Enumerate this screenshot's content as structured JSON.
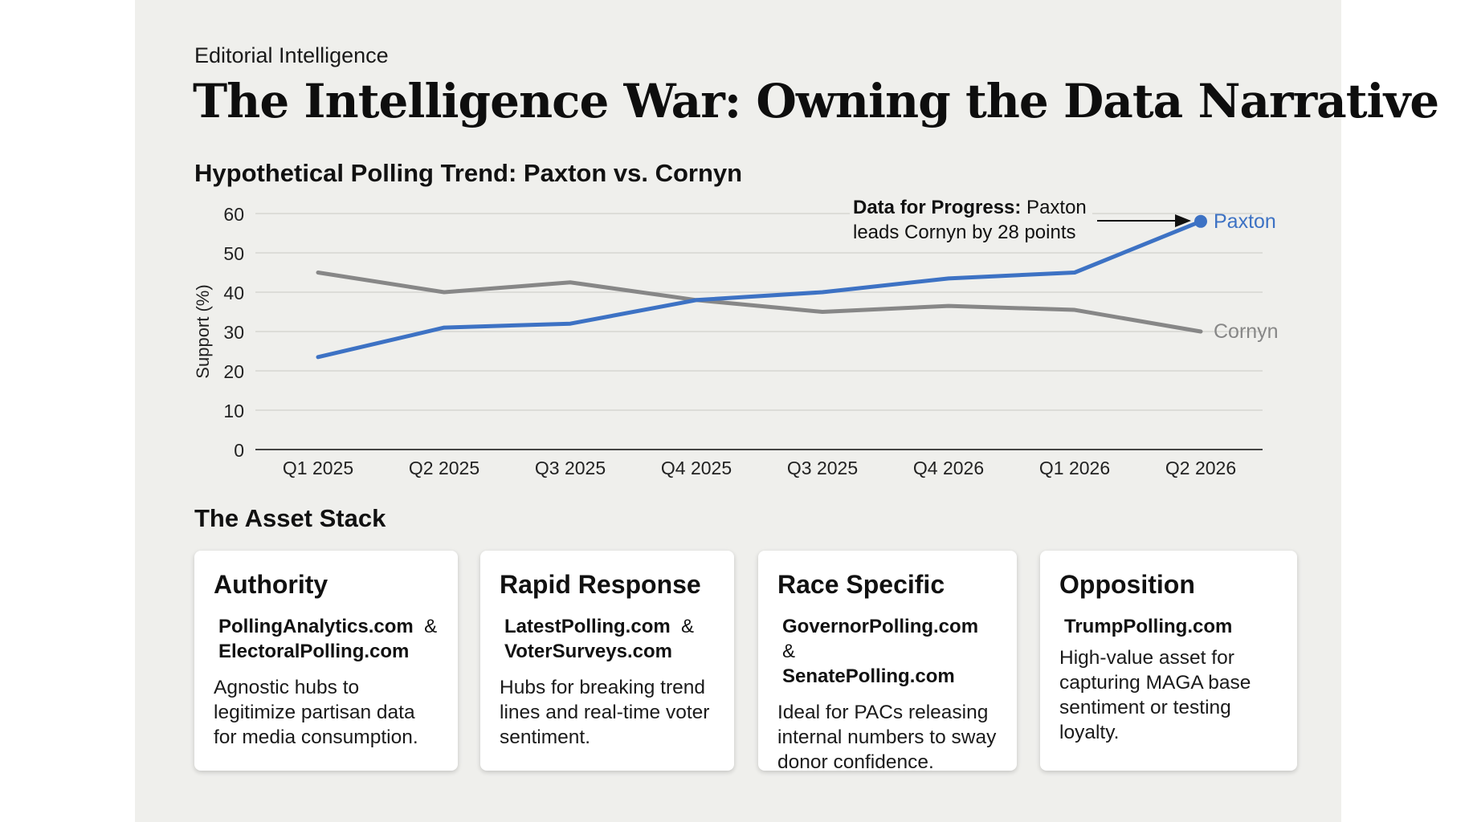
{
  "header": {
    "kicker": "Editorial Intelligence",
    "title": "The Intelligence War: Owning the Data Narrative"
  },
  "chart_data": {
    "type": "line",
    "title": "Hypothetical Polling Trend: Paxton vs. Cornyn",
    "xlabel": "",
    "ylabel": "Support (%)",
    "ylim": [
      0,
      60
    ],
    "yticks": [
      0,
      10,
      20,
      30,
      40,
      50,
      60
    ],
    "grid": true,
    "categories": [
      "Q1 2025",
      "Q2 2025",
      "Q3 2025",
      "Q4 2025",
      "Q3 2025",
      "Q4 2026",
      "Q1 2026",
      "Q2 2026"
    ],
    "series": [
      {
        "name": "Paxton",
        "color": "#3d72c4",
        "values": [
          23.5,
          31,
          32,
          38,
          40,
          43.5,
          45,
          58
        ]
      },
      {
        "name": "Cornyn",
        "color": "#878787",
        "values": [
          45,
          40,
          42.5,
          38,
          35,
          36.5,
          35.5,
          30
        ]
      }
    ],
    "annotation": {
      "bold": "Data for Progress:",
      "line1_rest": " Paxton",
      "line2": "leads Cornyn by 28 points",
      "target_series": "Paxton",
      "target_index": 7
    }
  },
  "assets": {
    "section_title": "The Asset Stack",
    "cards": [
      {
        "title": "Authority",
        "domain1": "PollingAnalytics.com",
        "sep": "&",
        "domain2": "ElectoralPolling.com",
        "desc_lines": [
          "Agnostic hubs to",
          "legitimize partisan data",
          "for media consumption."
        ]
      },
      {
        "title": "Rapid Response",
        "domain1": "LatestPolling.com",
        "sep": "&",
        "domain2": "VoterSurveys.com",
        "desc_lines": [
          "Hubs for breaking trend",
          "lines and real-time voter",
          "sentiment."
        ]
      },
      {
        "title": "Race Specific",
        "domain1": "GovernorPolling.com",
        "sep": "&",
        "domain2": "SenatePolling.com",
        "desc_lines": [
          "Ideal for PACs releasing",
          "internal numbers to sway",
          "donor confidence."
        ]
      },
      {
        "title": "Opposition",
        "domain1": "TrumpPolling.com",
        "desc_lines": [
          "High-value asset for",
          "capturing MAGA base",
          "sentiment or testing",
          "loyalty."
        ]
      }
    ]
  }
}
